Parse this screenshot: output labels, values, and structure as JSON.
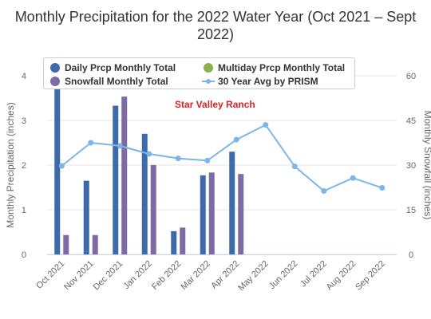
{
  "chart_data": {
    "type": "bar",
    "title": "Monthly Precipitation for the 2022 Water Year (Oct 2021 – Sept 2022)",
    "annotation": "Star Valley Ranch",
    "categories": [
      "Oct 2021",
      "Nov 2021",
      "Dec 2021",
      "Jan 2022",
      "Feb 2022",
      "Mar 2022",
      "Apr 2022",
      "May 2022",
      "Jun 2022",
      "Jul 2022",
      "Aug 2022",
      "Sep 2022"
    ],
    "ylabel_left": "Monthly Precipitation (inches)",
    "ylabel_right": "Monthly Snowfall (inches)",
    "ylim_left": [
      0,
      4
    ],
    "ylim_right": [
      0,
      60
    ],
    "yticks_left": [
      "0",
      "1",
      "2",
      "3",
      "4"
    ],
    "yticks_right": [
      "0",
      "15",
      "30",
      "45",
      "60"
    ],
    "grid": true,
    "legend_position": "top-left",
    "series": [
      {
        "name": "Daily Prcp Monthly Total",
        "type": "bar",
        "axis": "left",
        "color": "#3d6aa8",
        "values": [
          3.7,
          1.65,
          3.33,
          2.7,
          0.52,
          1.77,
          2.3,
          null,
          null,
          null,
          null,
          null
        ]
      },
      {
        "name": "Multiday Prcp Monthly Total",
        "type": "bar",
        "axis": "left",
        "color": "#8db04e",
        "values": [
          null,
          null,
          null,
          null,
          null,
          null,
          null,
          null,
          null,
          null,
          null,
          null
        ]
      },
      {
        "name": "Snowfall Monthly Total",
        "type": "bar",
        "axis": "right",
        "color": "#7e6ba3",
        "values": [
          6.5,
          6.5,
          53,
          30,
          9,
          27.5,
          27,
          null,
          null,
          null,
          null,
          null
        ]
      },
      {
        "name": "30 Year Avg by PRISM",
        "type": "line",
        "axis": "left",
        "color": "#7cb5ec",
        "values": [
          1.98,
          2.5,
          2.43,
          2.25,
          2.15,
          2.1,
          2.57,
          2.9,
          1.97,
          1.42,
          1.71,
          1.49
        ]
      }
    ]
  }
}
